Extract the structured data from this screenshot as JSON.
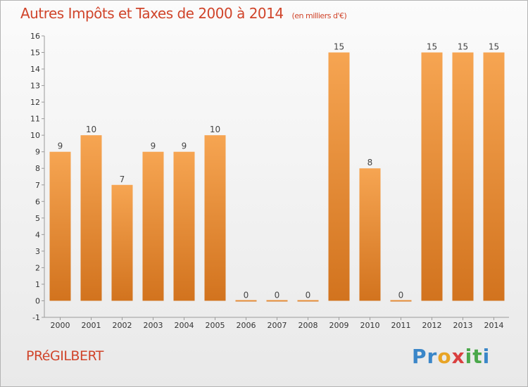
{
  "title": "Autres Impôts et Taxes de 2000 à 2014",
  "unit": "(en milliers d'€)",
  "commune": "PRéGILBERT",
  "logo": {
    "letters": [
      {
        "char": "P",
        "color": "#3a86c8"
      },
      {
        "char": "r",
        "color": "#3a86c8"
      },
      {
        "char": "o",
        "color": "#e8a425"
      },
      {
        "char": "x",
        "color": "#d93f3f"
      },
      {
        "char": "i",
        "color": "#4aa84a"
      },
      {
        "char": "t",
        "color": "#4aa84a"
      },
      {
        "char": "i",
        "color": "#3a86c8"
      }
    ]
  },
  "chart_data": {
    "type": "bar",
    "categories": [
      "2000",
      "2001",
      "2002",
      "2003",
      "2004",
      "2005",
      "2006",
      "2007",
      "2008",
      "2009",
      "2010",
      "2011",
      "2012",
      "2013",
      "2014"
    ],
    "values": [
      9,
      10,
      7,
      9,
      9,
      10,
      0,
      0,
      0,
      15,
      8,
      0,
      15,
      15,
      15
    ],
    "data_labels": [
      "9",
      "10",
      "7",
      "9",
      "9",
      "10",
      "0",
      "0",
      "0",
      "15",
      "8",
      "0",
      "15",
      "15",
      "15"
    ],
    "y_ticks": [
      "-1",
      "0",
      "1",
      "2",
      "3",
      "4",
      "5",
      "6",
      "7",
      "8",
      "9",
      "10",
      "11",
      "12",
      "13",
      "14",
      "15",
      "16"
    ],
    "ylim": [
      -1,
      16
    ],
    "grid": false,
    "bar_color_top": "#f6a552",
    "bar_color_bottom": "#d2731e"
  }
}
